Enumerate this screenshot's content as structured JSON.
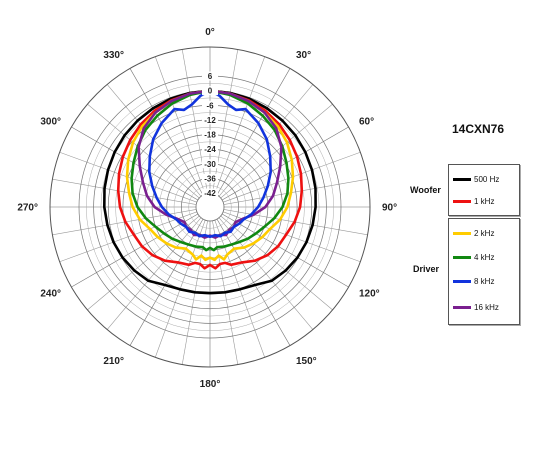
{
  "chart_data": {
    "type": "polar",
    "title": "14CXN76",
    "radial_axis": {
      "ticks": [
        6,
        0,
        -6,
        -12,
        -18,
        -24,
        -30,
        -36,
        -42
      ],
      "range": [
        -42,
        6
      ],
      "unit": "dB"
    },
    "angular_axis": {
      "labels": [
        "0°",
        "30°",
        "60°",
        "90°",
        "120°",
        "150°",
        "180°",
        "210°",
        "240°",
        "270°",
        "300°",
        "330°"
      ],
      "step_deg": 30,
      "minor_step_deg": 10,
      "direction": "clockwise",
      "zero_at": "top"
    },
    "grid": true,
    "legend_groups": [
      {
        "label": "Woofer",
        "entries": [
          {
            "name": "500 Hz",
            "color": "#000000"
          },
          {
            "name": "1 kHz",
            "color": "#ee1111"
          }
        ]
      },
      {
        "label": "Driver",
        "entries": [
          {
            "name": "2 kHz",
            "color": "#ffcc00"
          },
          {
            "name": "4 kHz",
            "color": "#118811"
          },
          {
            "name": "8 kHz",
            "color": "#1133dd"
          },
          {
            "name": "16 kHz",
            "color": "#7a1f8f"
          }
        ]
      }
    ],
    "series": [
      {
        "name": "500 Hz",
        "color": "#000000",
        "angles": [
          0,
          10,
          20,
          30,
          40,
          50,
          60,
          70,
          80,
          90,
          100,
          110,
          120,
          130,
          140,
          150,
          160,
          170,
          180
        ],
        "values": [
          0,
          -0.2,
          -0.5,
          -1,
          -1.5,
          -2,
          -2.6,
          -3.2,
          -3.8,
          -4.4,
          -5,
          -5.6,
          -6.3,
          -7.2,
          -8.3,
          -10.8,
          -11.8,
          -12.2,
          -12.4
        ]
      },
      {
        "name": "1 kHz",
        "color": "#ee1111",
        "angles": [
          0,
          10,
          20,
          30,
          40,
          50,
          60,
          70,
          80,
          90,
          100,
          110,
          120,
          130,
          140,
          150,
          160,
          165,
          170,
          175,
          180
        ],
        "values": [
          0,
          -0.5,
          -1.2,
          -2.2,
          -3.5,
          -5,
          -6.5,
          -8,
          -9.5,
          -10.8,
          -12.5,
          -14.5,
          -15.5,
          -17,
          -19,
          -21.5,
          -22.5,
          -24,
          -24,
          -22.5,
          -24
        ]
      },
      {
        "name": "2 kHz",
        "color": "#ffcc00",
        "angles": [
          0,
          10,
          20,
          30,
          40,
          50,
          60,
          70,
          80,
          90,
          100,
          110,
          120,
          130,
          140,
          150,
          160,
          165,
          170,
          175,
          180
        ],
        "values": [
          0,
          -0.5,
          -1.5,
          -3,
          -4.5,
          -6.5,
          -9,
          -11.5,
          -14,
          -16,
          -18.5,
          -21.5,
          -23,
          -24.5,
          -26,
          -28,
          -27,
          -25.5,
          -27.5,
          -26,
          -27
        ]
      },
      {
        "name": "4 kHz",
        "color": "#118811",
        "angles": [
          0,
          10,
          20,
          30,
          40,
          50,
          60,
          70,
          80,
          90,
          100,
          110,
          120,
          130,
          140,
          150,
          160,
          170,
          175,
          180
        ],
        "values": [
          0,
          -1,
          -2.5,
          -4.5,
          -6.5,
          -9,
          -11.5,
          -13.5,
          -15.5,
          -18,
          -21,
          -24,
          -26,
          -27.5,
          -29,
          -30,
          -30.5,
          -31,
          -30,
          -31
        ]
      },
      {
        "name": "8 kHz",
        "color": "#1133dd",
        "angles": [
          0,
          5,
          10,
          15,
          20,
          30,
          40,
          50,
          60,
          70,
          80,
          90,
          100,
          110,
          120,
          130,
          140,
          150,
          160,
          170,
          180
        ],
        "values": [
          0,
          -2,
          -5,
          -6.5,
          -5,
          -8,
          -11.5,
          -15.5,
          -19,
          -22.5,
          -25.5,
          -28,
          -30.5,
          -33,
          -34,
          -35,
          -34.5,
          -35.5,
          -35,
          -36,
          -35.5
        ]
      },
      {
        "name": "16 kHz",
        "color": "#7a1f8f",
        "angles": [
          0,
          10,
          20,
          30,
          40,
          50,
          60,
          70,
          80,
          90,
          100,
          110,
          120,
          130,
          140,
          150,
          160,
          170,
          180
        ],
        "values": [
          0,
          -0.5,
          -1.5,
          -3,
          -5.5,
          -9.5,
          -14.5,
          -18.5,
          -21.5,
          -25,
          -29.5,
          -33.5,
          -35.5,
          -35,
          -35.5,
          -34.5,
          -35.5,
          -35,
          -36
        ]
      }
    ]
  }
}
